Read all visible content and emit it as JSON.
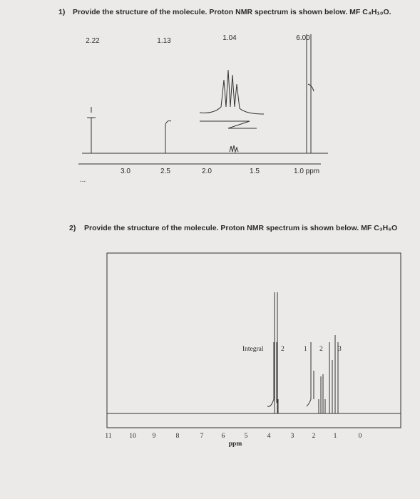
{
  "question1": {
    "number": "1)",
    "text": "Provide the structure of the molecule. Proton NMR spectrum is shown below. MF C₄H₁₀O.",
    "integrals": [
      "2.22",
      "1.13",
      "1.04",
      "6.00"
    ],
    "axis_labels": [
      "3.0",
      "2.5",
      "2.0",
      "1.5",
      "1.0 ppm"
    ],
    "ellipsis": "..."
  },
  "question2": {
    "number": "2)",
    "text": "Provide the structure of the molecule. Proton NMR spectrum is shown below. MF C₃H₆O",
    "axis_labels": [
      "11",
      "10",
      "9",
      "8",
      "7",
      "6",
      "5",
      "4",
      "3",
      "2",
      "1",
      "0"
    ],
    "axis_title": "ppm",
    "integral_title": "Integral",
    "integrals": [
      "2",
      "1",
      "2",
      "3"
    ]
  }
}
